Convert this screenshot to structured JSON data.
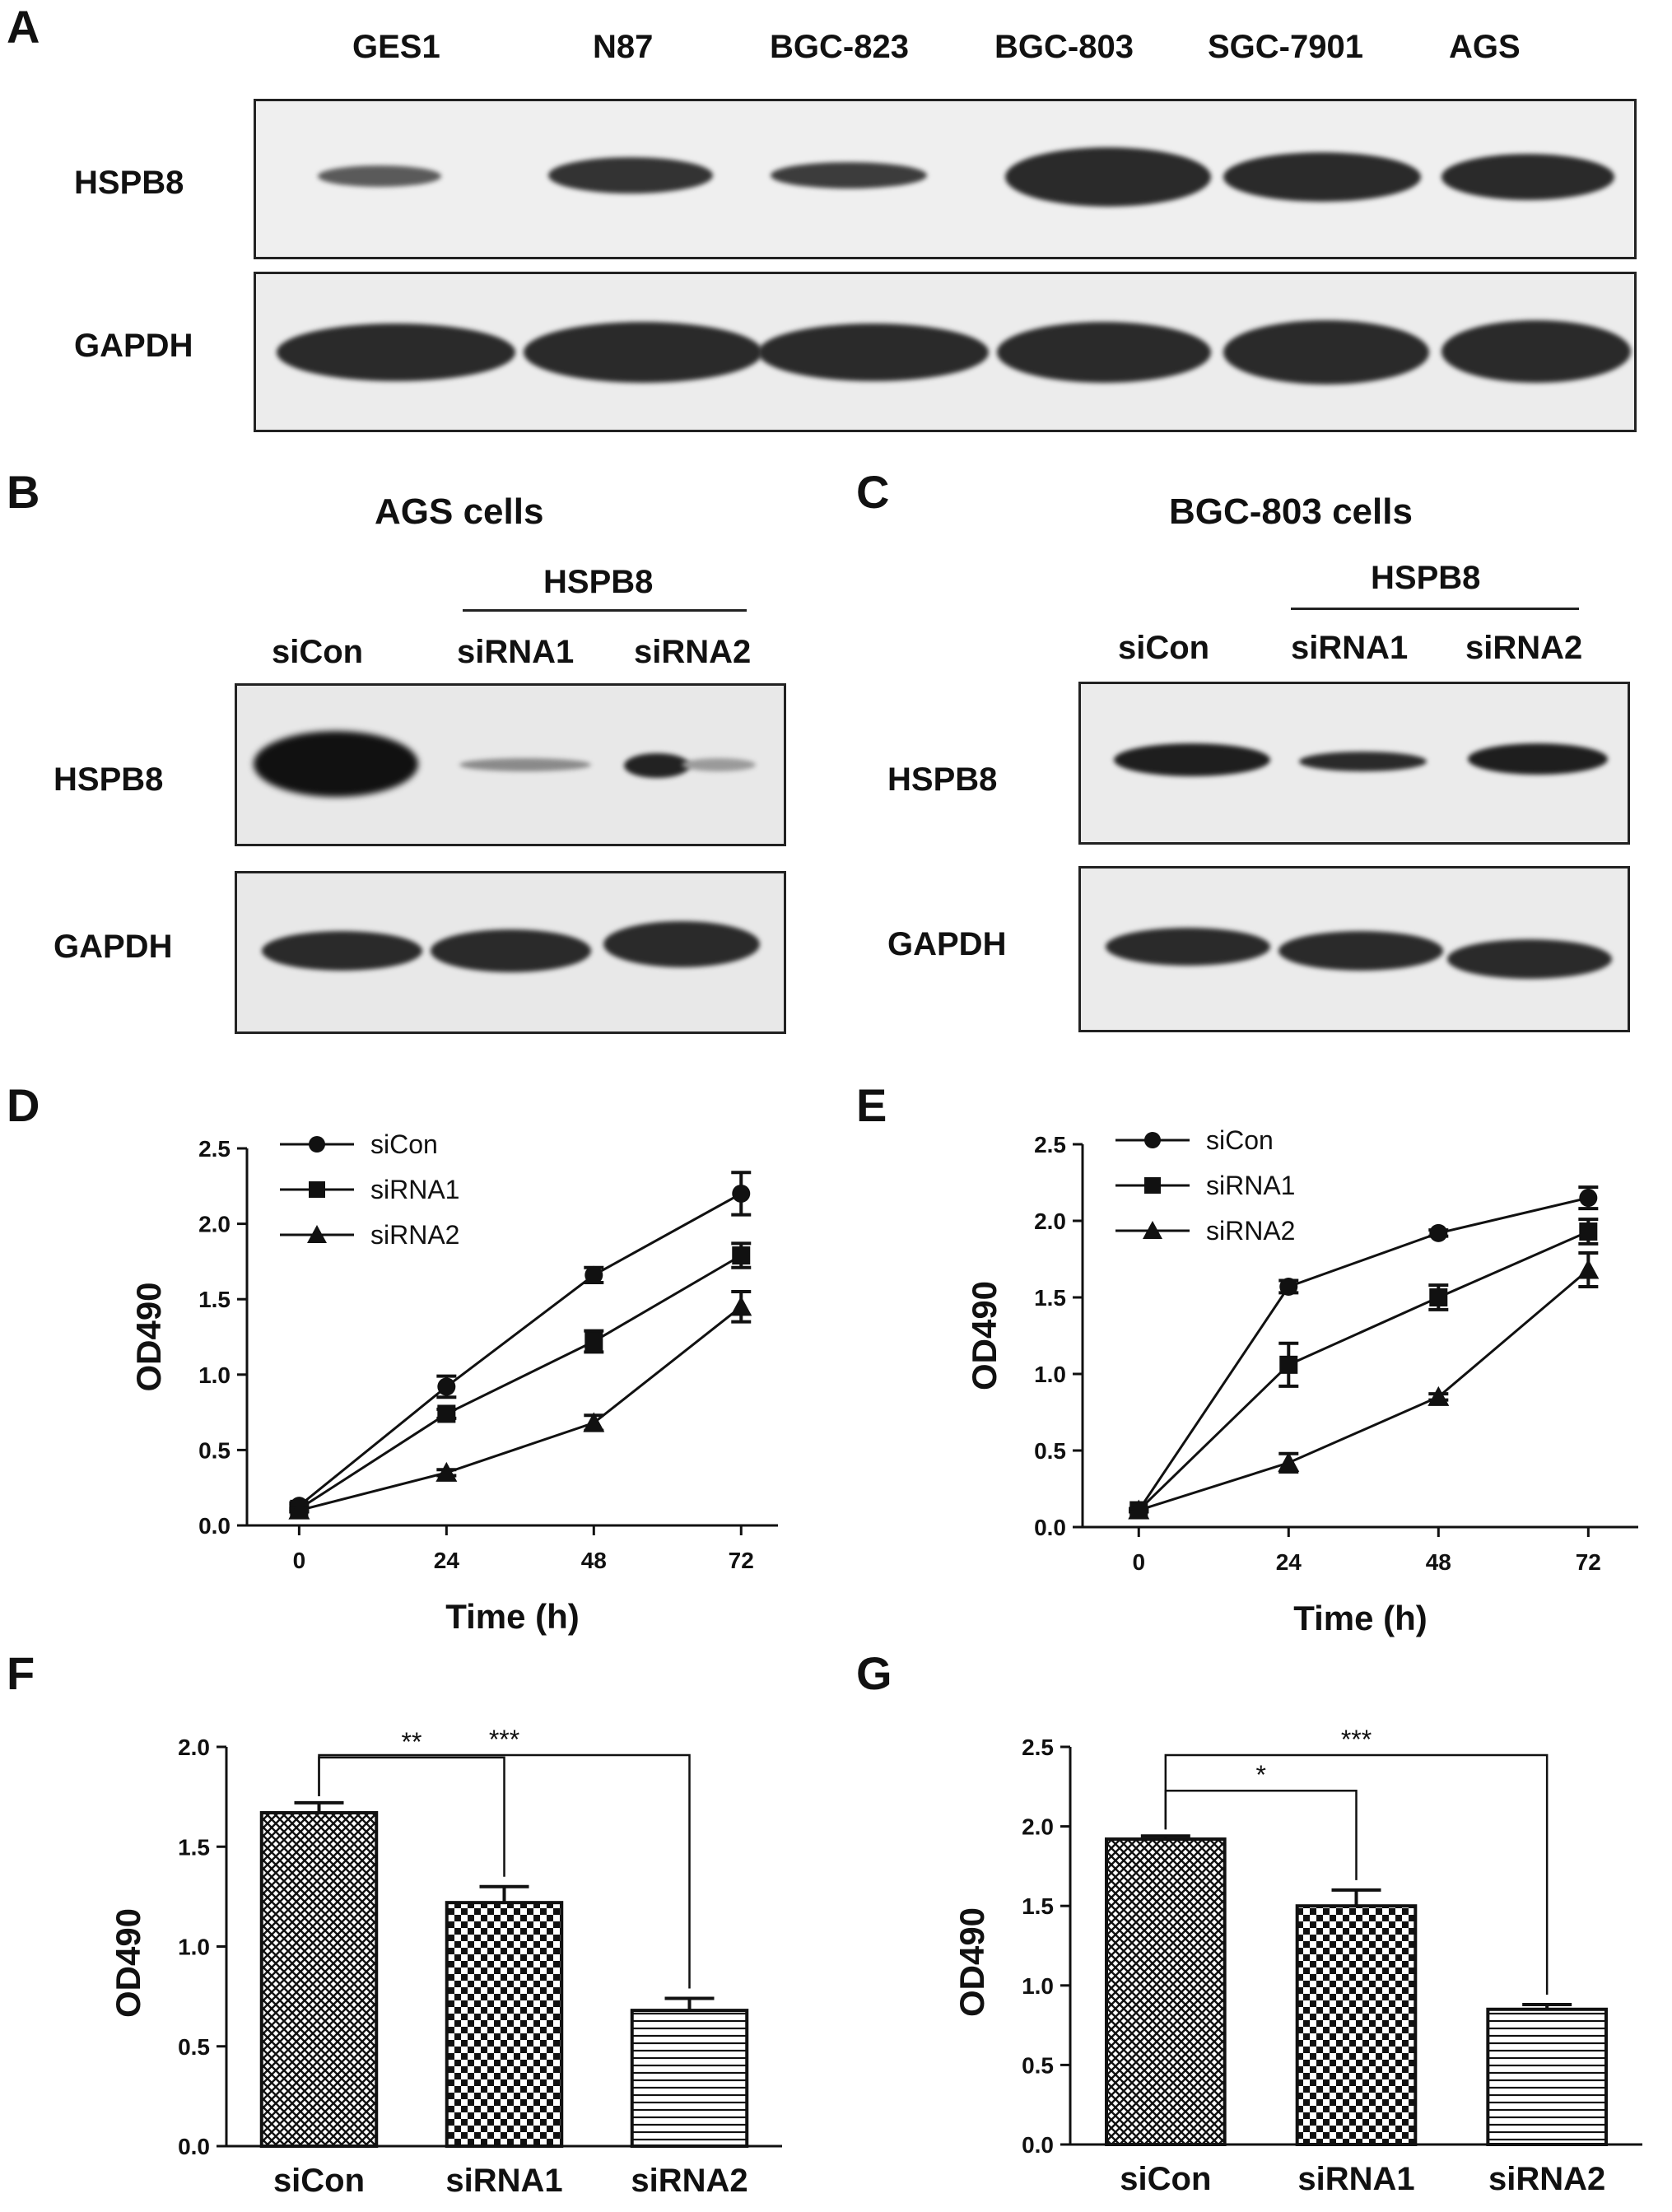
{
  "panel_A": {
    "letter": "A",
    "lanes": [
      "GES1",
      "N87",
      "BGC-823",
      "BGC-803",
      "SGC-7901",
      "AGS"
    ],
    "row_labels": [
      "HSPB8",
      "GAPDH"
    ]
  },
  "panel_B": {
    "letter": "B",
    "title": "AGS cells",
    "group_label": "HSPB8",
    "lanes": [
      "siCon",
      "siRNA1",
      "siRNA2"
    ],
    "row_labels": [
      "HSPB8",
      "GAPDH"
    ]
  },
  "panel_C": {
    "letter": "C",
    "title": "BGC-803 cells",
    "group_label": "HSPB8",
    "lanes": [
      "siCon",
      "siRNA1",
      "siRNA2"
    ],
    "row_labels": [
      "HSPB8",
      "GAPDH"
    ]
  },
  "colors": {
    "ink": "#111111",
    "blot_bg": "#f0f0f0",
    "band": "#2a2a2a"
  },
  "chart_data": [
    {
      "id": "D",
      "panel_letter": "D",
      "type": "line",
      "xlabel": "Time (h)",
      "ylabel": "OD490",
      "x": [
        0,
        24,
        48,
        72
      ],
      "xticks": [
        "0",
        "24",
        "48",
        "72"
      ],
      "yticks": [
        "0.0",
        "0.5",
        "1.0",
        "1.5",
        "2.0",
        "2.5"
      ],
      "ylim": [
        0,
        2.5
      ],
      "legend_position": "top-left",
      "series": [
        {
          "name": "siCon",
          "marker": "circle",
          "values": [
            0.13,
            0.92,
            1.66,
            2.2
          ],
          "errors": [
            0.02,
            0.07,
            0.05,
            0.14
          ]
        },
        {
          "name": "siRNA1",
          "marker": "square",
          "values": [
            0.11,
            0.74,
            1.22,
            1.79
          ],
          "errors": [
            0.02,
            0.03,
            0.07,
            0.08
          ]
        },
        {
          "name": "siRNA2",
          "marker": "triangle",
          "values": [
            0.1,
            0.35,
            0.68,
            1.45
          ],
          "errors": [
            0.01,
            0.02,
            0.05,
            0.1
          ]
        }
      ]
    },
    {
      "id": "E",
      "panel_letter": "E",
      "type": "line",
      "xlabel": "Time (h)",
      "ylabel": "OD490",
      "x": [
        0,
        24,
        48,
        72
      ],
      "xticks": [
        "0",
        "24",
        "48",
        "72"
      ],
      "yticks": [
        "0.0",
        "0.5",
        "1.0",
        "1.5",
        "2.0",
        "2.5"
      ],
      "ylim": [
        0,
        2.5
      ],
      "legend_position": "top-left",
      "series": [
        {
          "name": "siCon",
          "marker": "circle",
          "values": [
            0.11,
            1.57,
            1.92,
            2.15
          ],
          "errors": [
            0.01,
            0.04,
            0.02,
            0.07
          ]
        },
        {
          "name": "siRNA1",
          "marker": "square",
          "values": [
            0.11,
            1.06,
            1.5,
            1.93
          ],
          "errors": [
            0.01,
            0.14,
            0.08,
            0.08
          ]
        },
        {
          "name": "siRNA2",
          "marker": "triangle",
          "values": [
            0.11,
            0.42,
            0.85,
            1.68
          ],
          "errors": [
            0.01,
            0.06,
            0.02,
            0.11
          ]
        }
      ]
    },
    {
      "id": "F",
      "panel_letter": "F",
      "type": "bar",
      "ylabel": "OD490",
      "categories": [
        "siCon",
        "siRNA1",
        "siRNA2"
      ],
      "values": [
        1.67,
        1.22,
        0.68
      ],
      "errors": [
        0.05,
        0.08,
        0.06
      ],
      "patterns": [
        "crosshatch",
        "checker",
        "horizontal"
      ],
      "yticks": [
        "0.0",
        "0.5",
        "1.0",
        "1.5",
        "2.0"
      ],
      "ylim": [
        0,
        2.0
      ],
      "significance": [
        {
          "from": 0,
          "to": 1,
          "label": "**"
        },
        {
          "from": 0,
          "to": 2,
          "label": "***"
        }
      ]
    },
    {
      "id": "G",
      "panel_letter": "G",
      "type": "bar",
      "ylabel": "OD490",
      "categories": [
        "siCon",
        "siRNA1",
        "siRNA2"
      ],
      "values": [
        1.92,
        1.5,
        0.85
      ],
      "errors": [
        0.02,
        0.1,
        0.03
      ],
      "patterns": [
        "crosshatch",
        "checker",
        "horizontal"
      ],
      "yticks": [
        "0.0",
        "0.5",
        "1.0",
        "1.5",
        "2.0",
        "2.5"
      ],
      "ylim": [
        0,
        2.5
      ],
      "significance": [
        {
          "from": 0,
          "to": 1,
          "label": "*"
        },
        {
          "from": 0,
          "to": 2,
          "label": "***"
        }
      ]
    }
  ]
}
